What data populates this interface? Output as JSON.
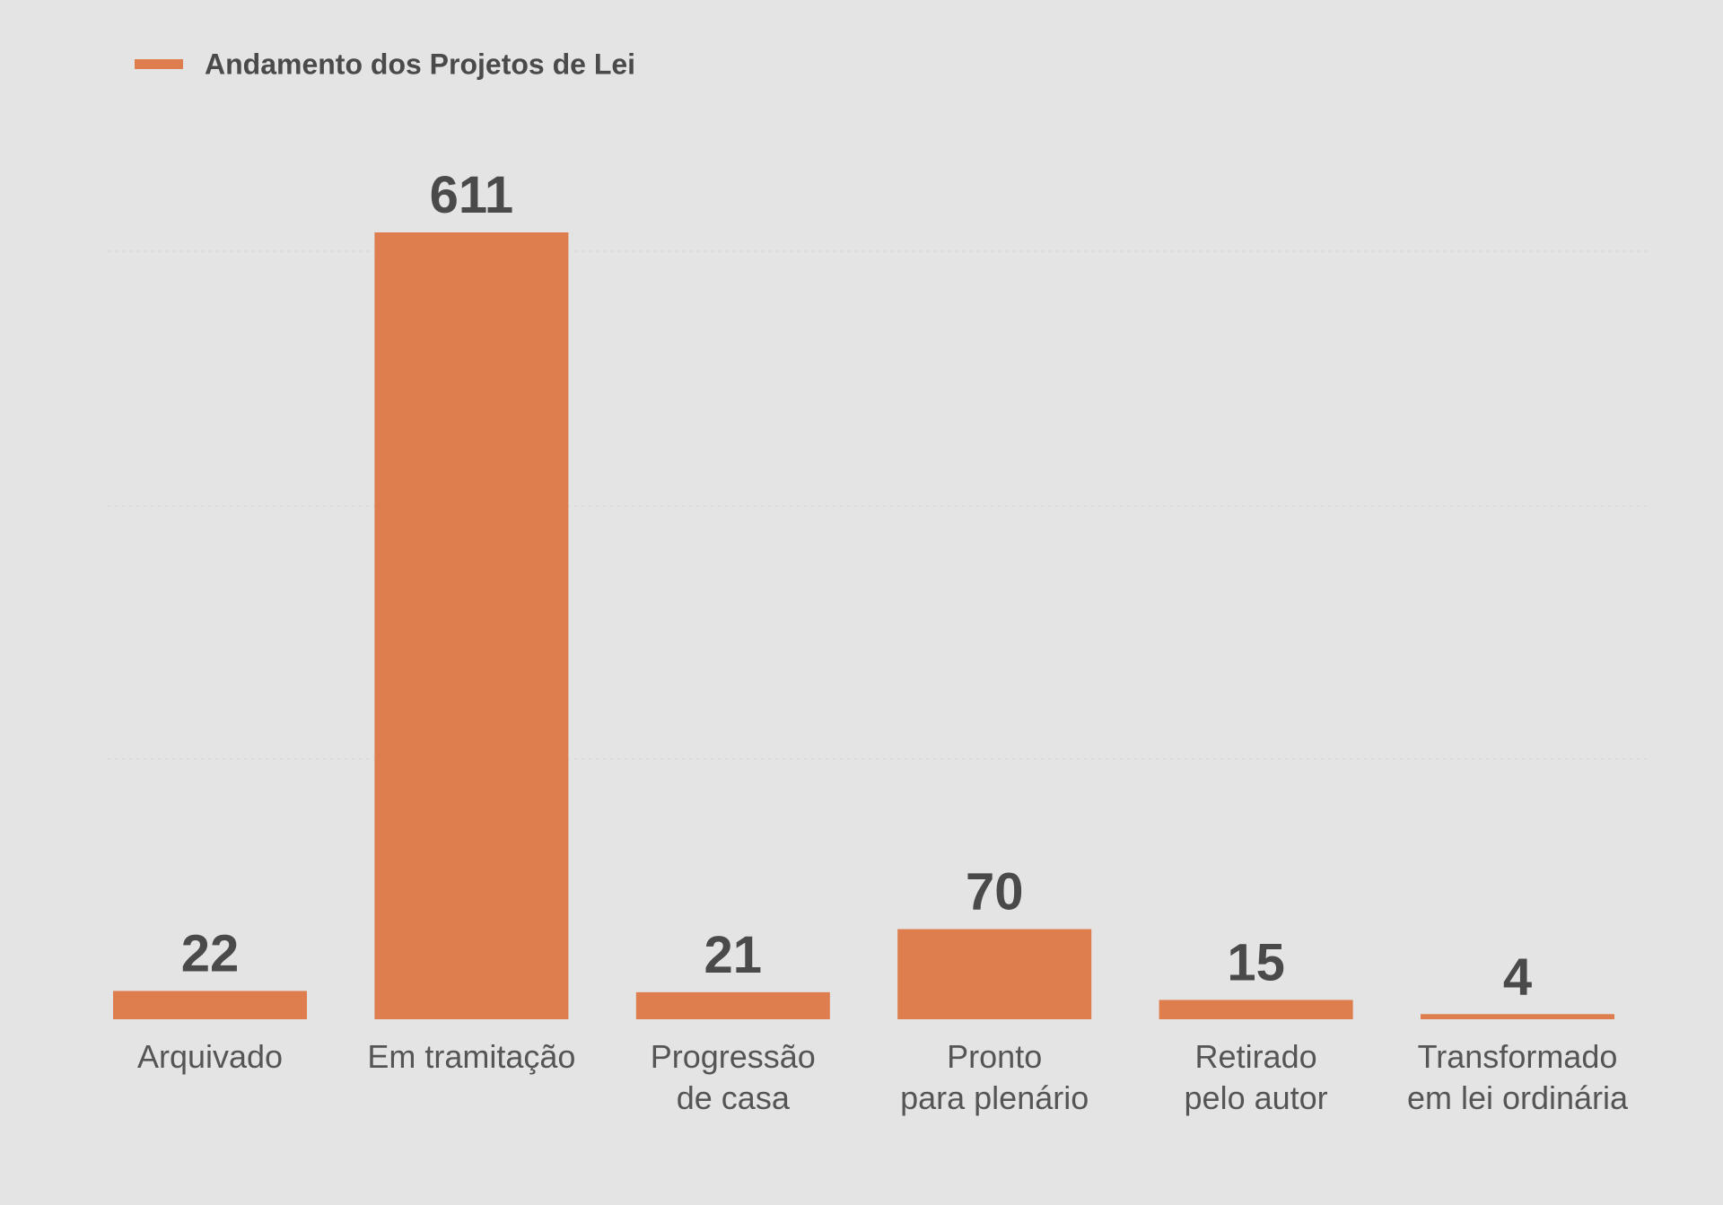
{
  "chart_data": {
    "type": "bar",
    "categories": [
      [
        "Arquivado"
      ],
      [
        "Em tramitação"
      ],
      [
        "Progressão",
        "de casa"
      ],
      [
        "Pronto",
        "para plenário"
      ],
      [
        "Retirado",
        "pelo autor"
      ],
      [
        "Transformado",
        "em lei ordinária"
      ]
    ],
    "series": [
      {
        "name": "Andamento dos Projetos de Lei",
        "values": [
          22,
          611,
          21,
          70,
          15,
          4
        ],
        "data_labels": [
          "22",
          "611",
          "21",
          "70",
          "15",
          "4"
        ]
      }
    ],
    "title": "",
    "xlabel": "",
    "ylabel": "",
    "ylim": [
      0,
      611
    ],
    "grid": true,
    "legend_position": "top-left",
    "colors": {
      "bar": "#de7d4d",
      "background": "#e4e4e4",
      "text": "#4a4a4a"
    }
  }
}
